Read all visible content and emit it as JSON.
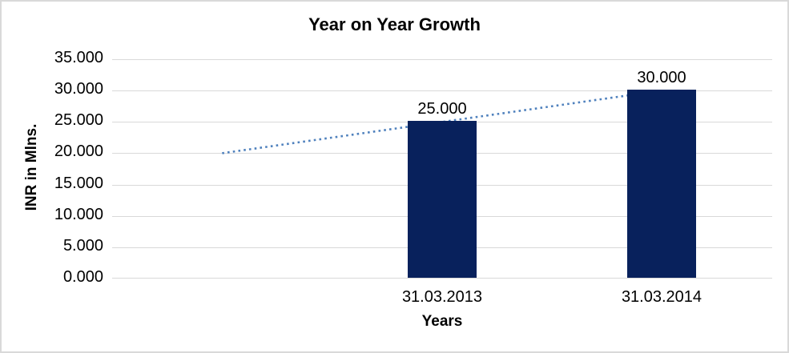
{
  "chart_data": {
    "type": "bar",
    "title": "Year on Year Growth",
    "xlabel": "Years",
    "ylabel": "INR in Mlns.",
    "categories": [
      "31.03.2013",
      "31.03.2014"
    ],
    "values": [
      25,
      30
    ],
    "data_labels": [
      "25.000",
      "30.000"
    ],
    "y_tick_labels": [
      "35.000",
      "30.000",
      "25.000",
      "20.000",
      "15.000",
      "10.000",
      "5.000",
      "0.000"
    ],
    "ylim": [
      0,
      35
    ],
    "gridlines": true,
    "legend": false,
    "bar_color": "#08215c",
    "gridline_color": "#d9d9d9",
    "trendline": {
      "style": "dotted",
      "color": "#4f81bd",
      "slot_values": [
        20,
        25,
        30
      ]
    }
  }
}
